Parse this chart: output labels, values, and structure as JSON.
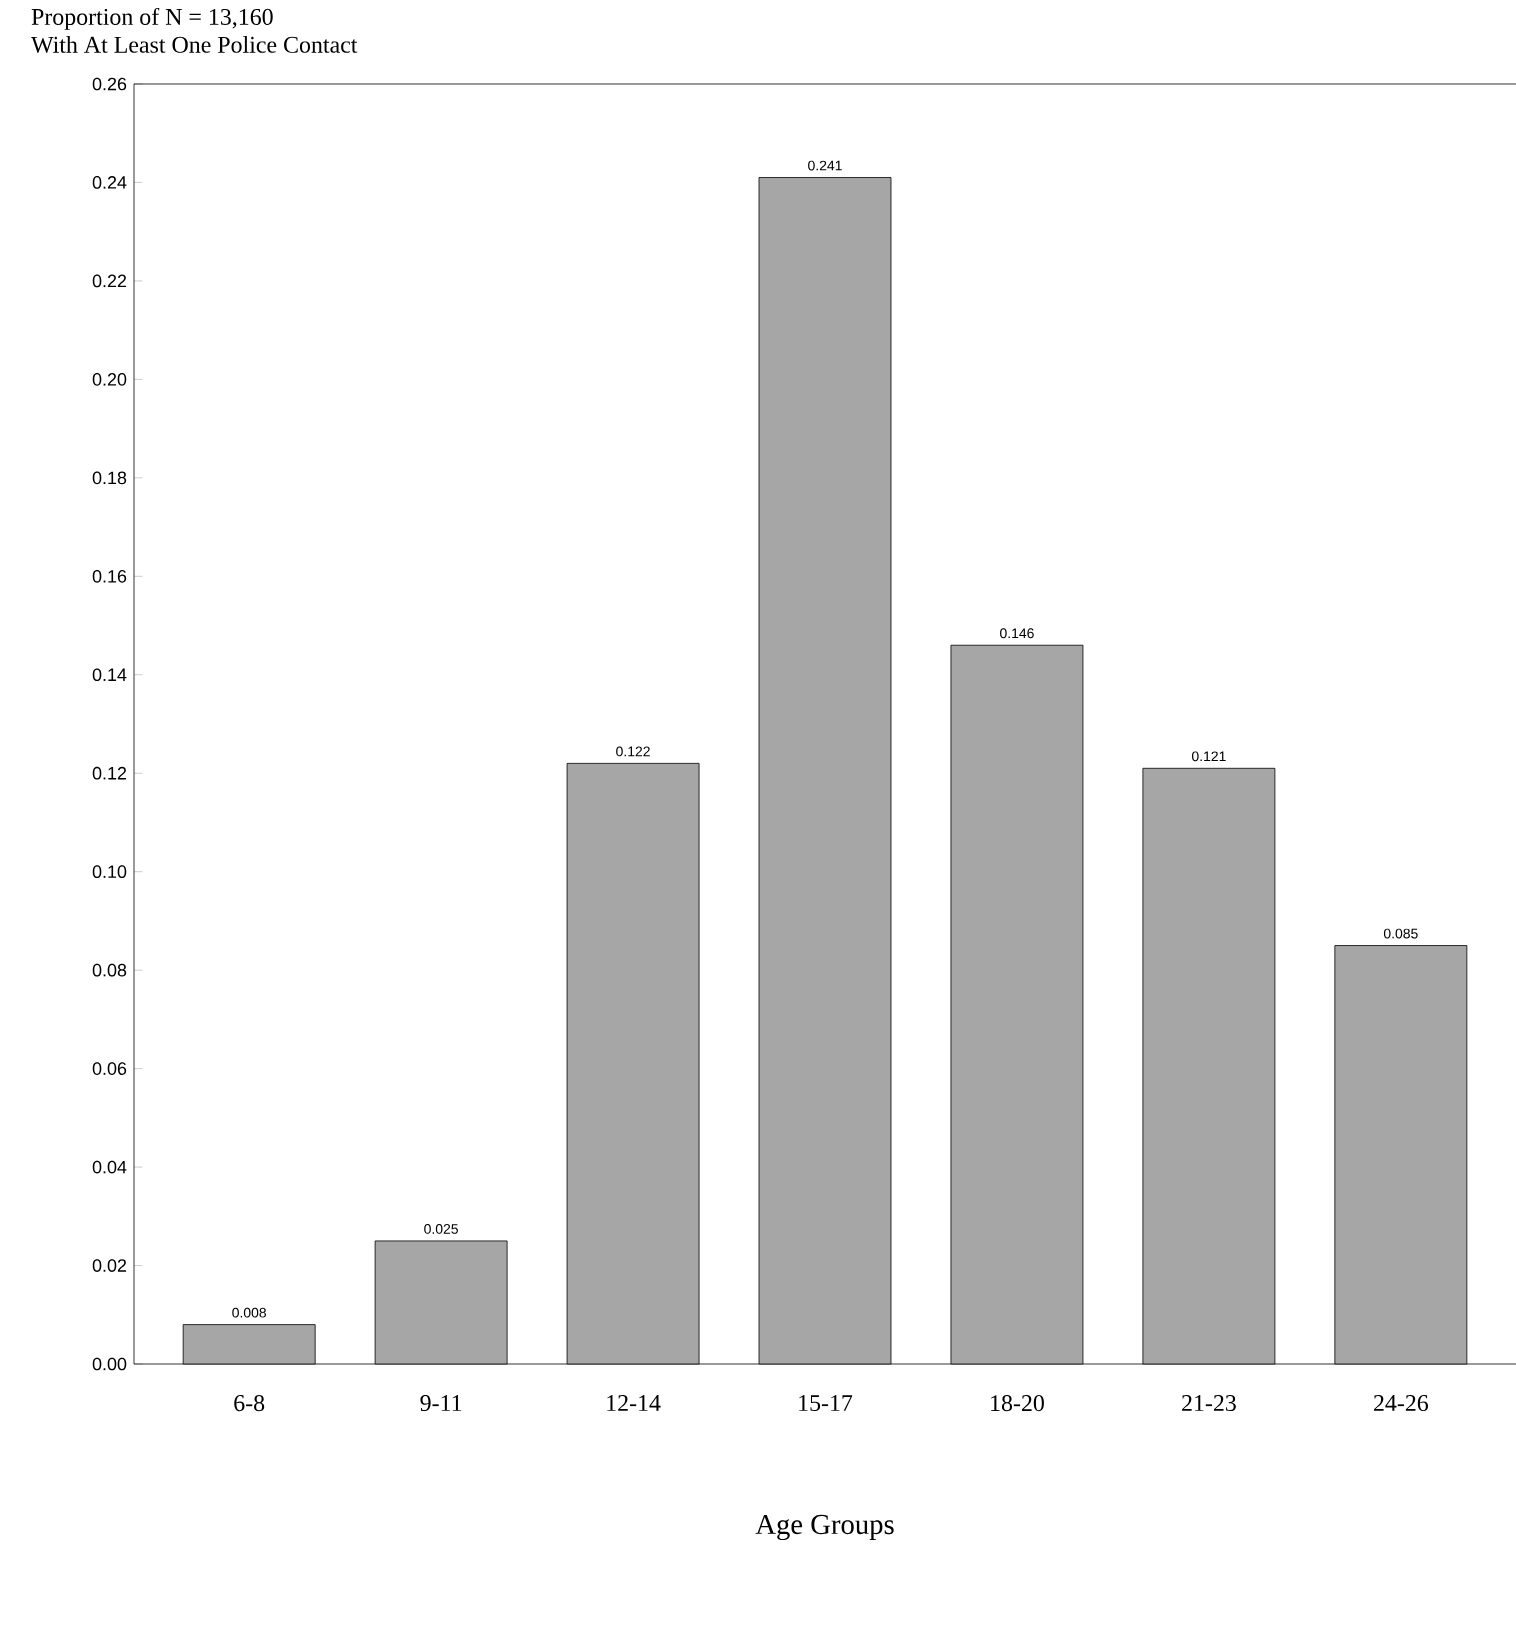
{
  "chart_data": {
    "type": "bar",
    "title": "Proportion of N = 13,160",
    "subtitle": "With At Least One Police Contact",
    "xlabel": "Age Groups",
    "categories": [
      "6-8",
      "9-11",
      "12-14",
      "15-17",
      "18-20",
      "21-23",
      "24-26"
    ],
    "values": [
      0.008,
      0.025,
      0.122,
      0.241,
      0.146,
      0.121,
      0.085
    ],
    "color": "#a6a6a6",
    "ylim": [
      0,
      0.26
    ],
    "yticks": [
      {
        "value": 0,
        "label": "0.00"
      },
      {
        "value": 0.02,
        "label": "0.02"
      },
      {
        "value": 0.04,
        "label": "0.04"
      },
      {
        "value": 0.06,
        "label": "0.06"
      },
      {
        "value": 0.08,
        "label": "0.08"
      },
      {
        "value": 0.1,
        "label": "0.10"
      },
      {
        "value": 0.12,
        "label": "0.12"
      },
      {
        "value": 0.14,
        "label": "0.14"
      },
      {
        "value": 0.16,
        "label": "0.16"
      },
      {
        "value": 0.18,
        "label": "0.18"
      },
      {
        "value": 0.2,
        "label": "0.20"
      },
      {
        "value": 0.22,
        "label": "0.22"
      },
      {
        "value": 0.24,
        "label": "0.24"
      },
      {
        "value": 0.26,
        "label": "0.26"
      }
    ],
    "data_labels": true
  }
}
